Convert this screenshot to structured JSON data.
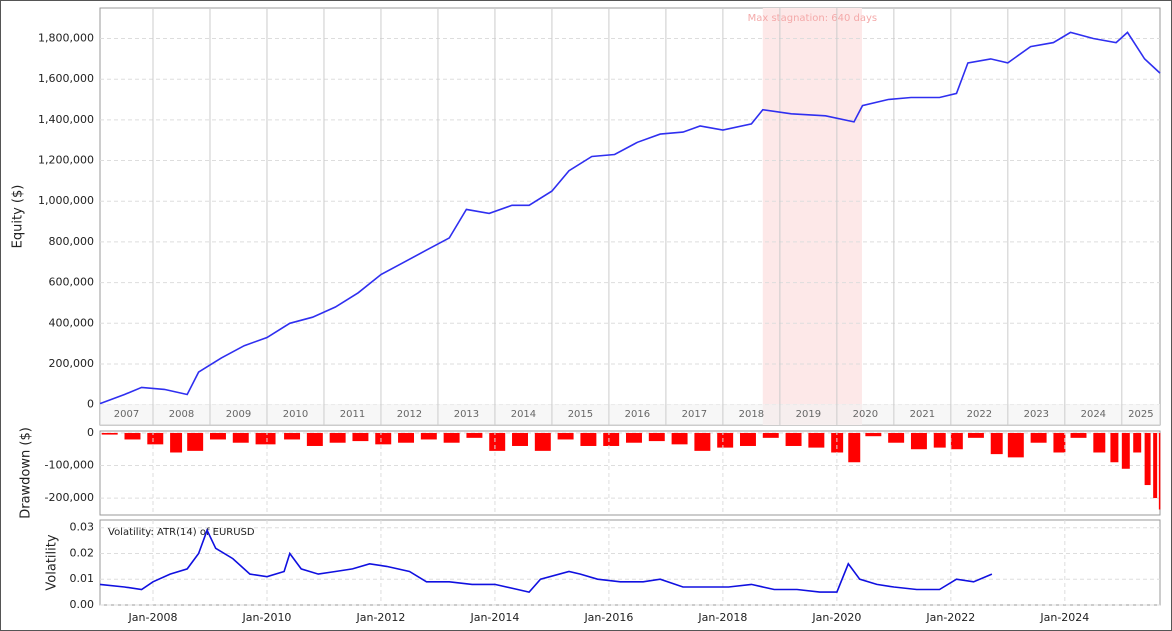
{
  "chart_data": [
    {
      "type": "line",
      "y_label": "Equity ($)",
      "color": "#2f2ff0",
      "xlim": [
        2007.07,
        2025.67
      ],
      "ylim": [
        -100000,
        1950000
      ],
      "yticks": [
        0,
        {
          "value": 200000,
          "label": "200,000"
        },
        {
          "value": 400000,
          "label": "400,000"
        },
        {
          "value": 600000,
          "label": "600,000"
        },
        {
          "value": 800000,
          "label": "800,000"
        },
        {
          "value": 1000000,
          "label": "1,000,000"
        },
        {
          "value": 1200000,
          "label": "1,200,000"
        },
        {
          "value": 1400000,
          "label": "1,400,000"
        },
        {
          "value": 1600000,
          "label": "1,600,000"
        },
        {
          "value": 1800000,
          "label": "1,800,000"
        }
      ],
      "year_labels": [
        2007,
        2008,
        2009,
        2010,
        2011,
        2012,
        2013,
        2014,
        2015,
        2016,
        2017,
        2018,
        2019,
        2020,
        2021,
        2022,
        2023,
        2024,
        2025
      ],
      "stagnation": {
        "label": "Max stagnation: 640 days",
        "x": [
          2018.7,
          2020.44
        ]
      },
      "x": [
        2007.07,
        2007.5,
        2007.8,
        2008.2,
        2008.6,
        2008.8,
        2009.2,
        2009.6,
        2010.0,
        2010.4,
        2010.8,
        2011.2,
        2011.6,
        2012.0,
        2012.4,
        2012.8,
        2013.2,
        2013.5,
        2013.9,
        2014.3,
        2014.6,
        2015.0,
        2015.3,
        2015.7,
        2016.1,
        2016.5,
        2016.9,
        2017.3,
        2017.6,
        2018.0,
        2018.5,
        2018.7,
        2019.2,
        2019.8,
        2020.3,
        2020.45,
        2020.9,
        2021.3,
        2021.8,
        2022.1,
        2022.3,
        2022.7,
        2023.0,
        2023.4,
        2023.8,
        2024.1,
        2024.5,
        2024.9,
        2025.1,
        2025.4,
        2025.67
      ],
      "values": [
        5000,
        50000,
        85000,
        75000,
        50000,
        160000,
        230000,
        290000,
        330000,
        400000,
        430000,
        480000,
        550000,
        640000,
        700000,
        760000,
        820000,
        960000,
        940000,
        980000,
        980000,
        1050000,
        1150000,
        1220000,
        1230000,
        1290000,
        1330000,
        1340000,
        1370000,
        1350000,
        1380000,
        1450000,
        1430000,
        1420000,
        1390000,
        1470000,
        1500000,
        1510000,
        1510000,
        1530000,
        1680000,
        1700000,
        1680000,
        1760000,
        1780000,
        1830000,
        1800000,
        1780000,
        1830000,
        1700000,
        1630000
      ]
    },
    {
      "type": "bar",
      "y_label": "Drawdown ($)",
      "color": "#ff0000",
      "xlim": [
        2007.07,
        2025.67
      ],
      "ylim": [
        -252000,
        6000
      ],
      "yticks": [
        0,
        {
          "value": -100000,
          "label": "-100,000"
        },
        {
          "value": -200000,
          "label": "-200,000"
        }
      ],
      "x": [
        2007.1,
        2007.5,
        2007.9,
        2008.3,
        2008.6,
        2009.0,
        2009.4,
        2009.8,
        2010.3,
        2010.7,
        2011.1,
        2011.5,
        2011.9,
        2012.3,
        2012.7,
        2013.1,
        2013.5,
        2013.9,
        2014.3,
        2014.7,
        2015.1,
        2015.5,
        2015.9,
        2016.3,
        2016.7,
        2017.1,
        2017.5,
        2017.9,
        2018.3,
        2018.7,
        2019.1,
        2019.5,
        2019.9,
        2020.2,
        2020.5,
        2020.9,
        2021.3,
        2021.7,
        2022.0,
        2022.3,
        2022.7,
        2023.0,
        2023.4,
        2023.8,
        2024.1,
        2024.5,
        2024.8,
        2025.0,
        2025.2,
        2025.4,
        2025.55,
        2025.65
      ],
      "values": [
        -5000,
        -20000,
        -35000,
        -60000,
        -55000,
        -20000,
        -30000,
        -35000,
        -20000,
        -40000,
        -30000,
        -25000,
        -35000,
        -30000,
        -20000,
        -30000,
        -15000,
        -55000,
        -40000,
        -55000,
        -20000,
        -40000,
        -40000,
        -30000,
        -25000,
        -35000,
        -55000,
        -45000,
        -40000,
        -15000,
        -40000,
        -45000,
        -60000,
        -90000,
        -10000,
        -30000,
        -50000,
        -45000,
        -50000,
        -15000,
        -65000,
        -75000,
        -30000,
        -60000,
        -15000,
        -60000,
        -90000,
        -110000,
        -60000,
        -160000,
        -200000,
        -235000
      ]
    },
    {
      "type": "line",
      "y_label": "Volatility",
      "legend": "Volatility: ATR(14) of EURUSD",
      "color": "#1010e0",
      "xlim": [
        2007.07,
        2025.67
      ],
      "ylim": [
        0,
        0.033
      ],
      "yticks": [
        {
          "value": 0,
          "label": "0.00"
        },
        0.01,
        0.02,
        0.03
      ],
      "xticks": [
        {
          "value": 2008,
          "label": "Jan-2008"
        },
        {
          "value": 2010,
          "label": "Jan-2010"
        },
        {
          "value": 2012,
          "label": "Jan-2012"
        },
        {
          "value": 2014,
          "label": "Jan-2014"
        },
        {
          "value": 2016,
          "label": "Jan-2016"
        },
        {
          "value": 2018,
          "label": "Jan-2018"
        },
        {
          "value": 2020,
          "label": "Jan-2020"
        },
        {
          "value": 2022,
          "label": "Jan-2022"
        },
        {
          "value": 2024,
          "label": "Jan-2024"
        }
      ],
      "x": [
        2007.07,
        2007.5,
        2007.8,
        2008.0,
        2008.3,
        2008.6,
        2008.8,
        2008.95,
        2009.1,
        2009.4,
        2009.7,
        2010.0,
        2010.3,
        2010.4,
        2010.6,
        2010.9,
        2011.2,
        2011.5,
        2011.8,
        2012.1,
        2012.5,
        2012.8,
        2013.2,
        2013.6,
        2014.0,
        2014.4,
        2014.6,
        2014.8,
        2015.3,
        2015.5,
        2015.8,
        2016.2,
        2016.6,
        2016.9,
        2017.3,
        2017.7,
        2018.1,
        2018.5,
        2018.9,
        2019.3,
        2019.7,
        2020.0,
        2020.2,
        2020.4,
        2020.7,
        2021.0,
        2021.4,
        2021.8,
        2022.1,
        2022.4,
        2022.72
      ],
      "values": [
        0.008,
        0.007,
        0.006,
        0.009,
        0.012,
        0.014,
        0.02,
        0.029,
        0.022,
        0.018,
        0.012,
        0.011,
        0.013,
        0.02,
        0.014,
        0.012,
        0.013,
        0.014,
        0.016,
        0.015,
        0.013,
        0.009,
        0.009,
        0.008,
        0.008,
        0.006,
        0.005,
        0.01,
        0.013,
        0.012,
        0.01,
        0.009,
        0.009,
        0.01,
        0.007,
        0.007,
        0.007,
        0.008,
        0.006,
        0.006,
        0.005,
        0.005,
        0.016,
        0.01,
        0.008,
        0.007,
        0.006,
        0.006,
        0.01,
        0.009,
        0.012
      ]
    }
  ]
}
